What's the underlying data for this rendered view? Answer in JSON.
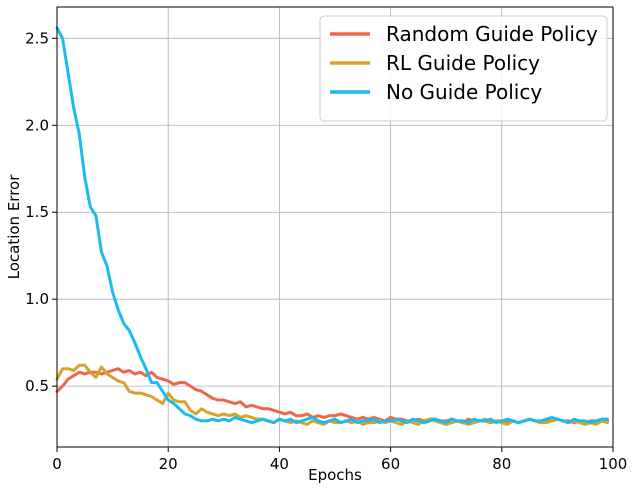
{
  "chart_data": {
    "type": "line",
    "title": "",
    "xlabel": "Epochs",
    "ylabel": "Location Error",
    "xlim": [
      0,
      100
    ],
    "ylim": [
      0.15,
      2.68
    ],
    "x_ticks": [
      "0",
      "20",
      "40",
      "60",
      "80",
      "100"
    ],
    "y_ticks": [
      "0.5",
      "1.0",
      "1.5",
      "2.0",
      "2.5"
    ],
    "grid": true,
    "legend_position": "top-right",
    "x": [
      0,
      1,
      2,
      3,
      4,
      5,
      6,
      7,
      8,
      9,
      10,
      11,
      12,
      13,
      14,
      15,
      16,
      17,
      18,
      19,
      20,
      21,
      22,
      23,
      24,
      25,
      26,
      27,
      28,
      29,
      30,
      31,
      32,
      33,
      34,
      35,
      36,
      37,
      38,
      39,
      40,
      41,
      42,
      43,
      44,
      45,
      46,
      47,
      48,
      49,
      50,
      51,
      52,
      53,
      54,
      55,
      56,
      57,
      58,
      59,
      60,
      61,
      62,
      63,
      64,
      65,
      66,
      67,
      68,
      69,
      70,
      71,
      72,
      73,
      74,
      75,
      76,
      77,
      78,
      79,
      80,
      81,
      82,
      83,
      84,
      85,
      86,
      87,
      88,
      89,
      90,
      91,
      92,
      93,
      94,
      95,
      96,
      97,
      98,
      99
    ],
    "series": [
      {
        "name": "Random Guide Policy",
        "color": "#f0664b",
        "values": [
          0.47,
          0.5,
          0.54,
          0.56,
          0.58,
          0.57,
          0.58,
          0.58,
          0.57,
          0.58,
          0.59,
          0.6,
          0.58,
          0.59,
          0.57,
          0.58,
          0.56,
          0.58,
          0.55,
          0.54,
          0.53,
          0.51,
          0.52,
          0.52,
          0.5,
          0.48,
          0.47,
          0.45,
          0.43,
          0.42,
          0.42,
          0.41,
          0.4,
          0.41,
          0.38,
          0.39,
          0.38,
          0.37,
          0.37,
          0.36,
          0.35,
          0.34,
          0.35,
          0.33,
          0.33,
          0.34,
          0.32,
          0.33,
          0.32,
          0.33,
          0.33,
          0.34,
          0.33,
          0.32,
          0.31,
          0.32,
          0.31,
          0.32,
          0.31,
          0.3,
          0.32,
          0.31,
          0.31,
          0.3,
          0.3,
          0.31,
          0.3,
          0.31,
          0.31,
          0.3,
          0.3,
          0.31,
          0.3,
          0.29,
          0.31,
          0.3,
          0.3,
          0.3,
          0.29,
          0.3,
          0.3,
          0.29,
          0.3,
          0.29,
          0.3,
          0.31,
          0.3,
          0.29,
          0.3,
          0.3,
          0.31,
          0.3,
          0.3,
          0.29,
          0.3,
          0.29,
          0.3,
          0.3,
          0.31,
          0.3
        ]
      },
      {
        "name": "RL Guide Policy",
        "color": "#d4a52c",
        "values": [
          0.54,
          0.6,
          0.6,
          0.59,
          0.62,
          0.62,
          0.58,
          0.55,
          0.61,
          0.57,
          0.55,
          0.53,
          0.52,
          0.47,
          0.46,
          0.46,
          0.45,
          0.44,
          0.42,
          0.4,
          0.46,
          0.42,
          0.41,
          0.41,
          0.36,
          0.34,
          0.37,
          0.35,
          0.34,
          0.33,
          0.34,
          0.33,
          0.34,
          0.32,
          0.33,
          0.32,
          0.31,
          0.31,
          0.3,
          0.29,
          0.31,
          0.3,
          0.29,
          0.3,
          0.29,
          0.28,
          0.3,
          0.29,
          0.28,
          0.3,
          0.29,
          0.29,
          0.3,
          0.29,
          0.3,
          0.28,
          0.29,
          0.29,
          0.3,
          0.29,
          0.3,
          0.29,
          0.28,
          0.3,
          0.29,
          0.28,
          0.3,
          0.31,
          0.3,
          0.29,
          0.28,
          0.29,
          0.3,
          0.29,
          0.28,
          0.29,
          0.3,
          0.31,
          0.29,
          0.3,
          0.29,
          0.28,
          0.3,
          0.29,
          0.3,
          0.31,
          0.3,
          0.29,
          0.29,
          0.3,
          0.31,
          0.3,
          0.29,
          0.3,
          0.29,
          0.28,
          0.29,
          0.28,
          0.3,
          0.29
        ]
      },
      {
        "name": "No Guide Policy",
        "color": "#1abcee",
        "values": [
          2.56,
          2.5,
          2.3,
          2.1,
          1.95,
          1.7,
          1.53,
          1.48,
          1.27,
          1.19,
          1.04,
          0.94,
          0.86,
          0.82,
          0.75,
          0.67,
          0.6,
          0.52,
          0.52,
          0.47,
          0.42,
          0.4,
          0.37,
          0.34,
          0.33,
          0.31,
          0.3,
          0.3,
          0.31,
          0.3,
          0.31,
          0.3,
          0.32,
          0.31,
          0.3,
          0.29,
          0.3,
          0.31,
          0.3,
          0.29,
          0.31,
          0.3,
          0.31,
          0.29,
          0.3,
          0.31,
          0.32,
          0.3,
          0.29,
          0.3,
          0.31,
          0.29,
          0.3,
          0.31,
          0.29,
          0.3,
          0.3,
          0.31,
          0.29,
          0.3,
          0.3,
          0.31,
          0.3,
          0.29,
          0.31,
          0.3,
          0.29,
          0.3,
          0.31,
          0.3,
          0.29,
          0.31,
          0.3,
          0.3,
          0.29,
          0.31,
          0.3,
          0.3,
          0.31,
          0.29,
          0.3,
          0.31,
          0.3,
          0.29,
          0.3,
          0.31,
          0.3,
          0.3,
          0.31,
          0.32,
          0.31,
          0.3,
          0.29,
          0.31,
          0.3,
          0.3,
          0.29,
          0.3,
          0.31,
          0.31
        ]
      }
    ]
  }
}
